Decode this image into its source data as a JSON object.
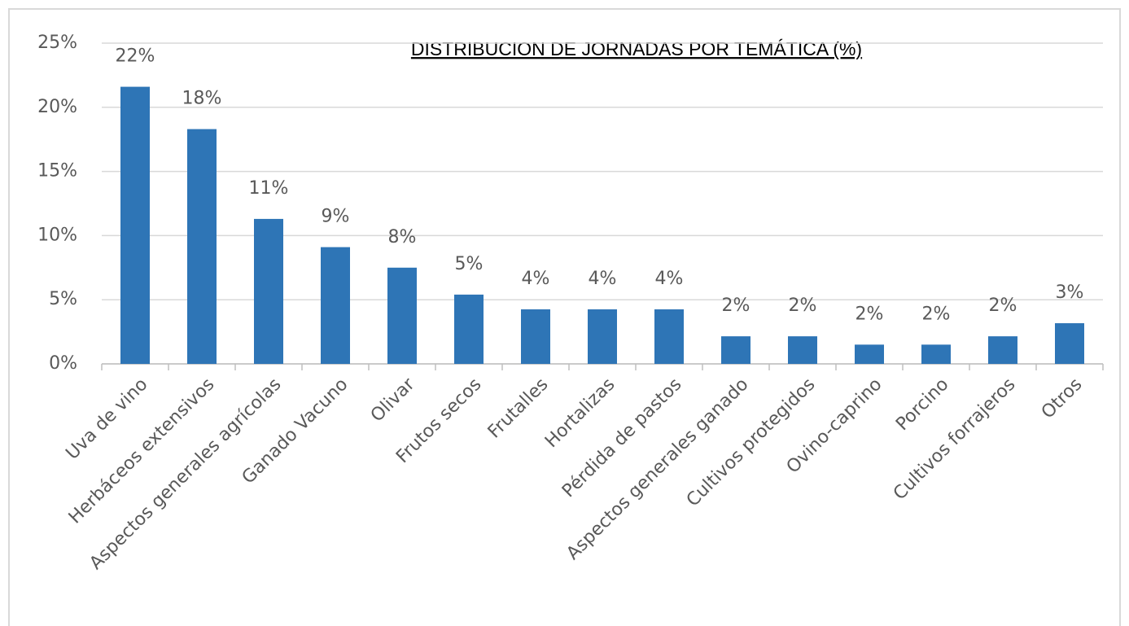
{
  "chart_data": {
    "type": "bar",
    "title": "DISTRIBUCION DE JORNADAS POR TEMÁTICA (%)",
    "categories": [
      "Uva de vino",
      "Herbáceos extensivos",
      "Aspectos generales agrícolas",
      "Ganado Vacuno",
      "Olivar",
      "Frutos secos",
      "Frutalles",
      "Hortalizas",
      "Pérdida de pastos",
      "Aspectos generales ganado",
      "Cultivos protegidos",
      "Ovino-caprino",
      "Porcino",
      "Cultivos forrajeros",
      "Otros"
    ],
    "values": [
      21.6,
      18.3,
      11.3,
      9.1,
      7.5,
      5.4,
      4.25,
      4.25,
      4.25,
      2.15,
      2.15,
      1.5,
      1.5,
      2.15,
      3.17
    ],
    "value_labels": [
      "22%",
      "18%",
      "11%",
      "9%",
      "8%",
      "5%",
      "4%",
      "4%",
      "4%",
      "2%",
      "2%",
      "2%",
      "2%",
      "2%",
      "3%"
    ],
    "color": "#2e75b6",
    "ylim": [
      0,
      25
    ],
    "yticks": [
      {
        "value": 0,
        "label": "0%"
      },
      {
        "value": 5,
        "label": "5%"
      },
      {
        "value": 10,
        "label": "10%"
      },
      {
        "value": 15,
        "label": "15%"
      },
      {
        "value": 20,
        "label": "20%"
      },
      {
        "value": 25,
        "label": "25%"
      }
    ],
    "grid": true
  }
}
